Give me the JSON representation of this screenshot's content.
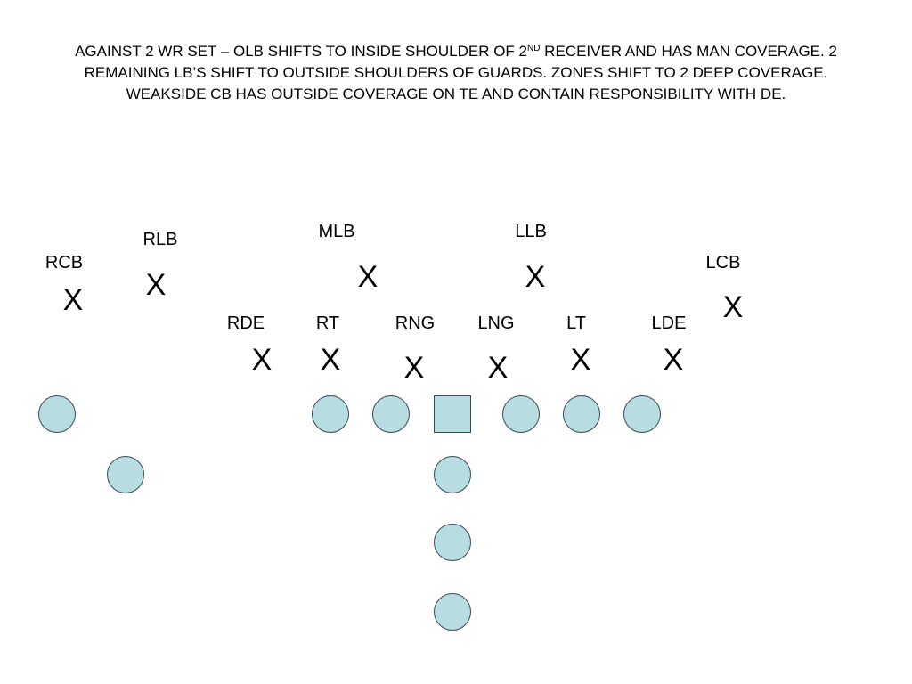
{
  "title": {
    "part1": "AGAINST 2 WR SET – OLB SHIFTS TO INSIDE SHOULDER OF 2",
    "sup": "ND",
    "part2": " RECEIVER AND HAS MAN COVERAGE. 2 REMAINING LB’S SHIFT TO OUTSIDE SHOULDERS OF GUARDS.  ZONES SHIFT TO 2 DEEP COVERAGE.  WEAKSIDE CB HAS OUTSIDE COVERAGE ON TE AND CONTAIN RESPONSIBILITY WITH DE."
  },
  "defense": [
    {
      "id": "rcb",
      "label": "RCB",
      "mark": "X"
    },
    {
      "id": "rlb",
      "label": "RLB",
      "mark": "X"
    },
    {
      "id": "mlb",
      "label": "MLB",
      "mark": "X"
    },
    {
      "id": "llb",
      "label": "LLB",
      "mark": "X"
    },
    {
      "id": "lcb",
      "label": "LCB",
      "mark": "X"
    },
    {
      "id": "rde",
      "label": "RDE",
      "mark": "X"
    },
    {
      "id": "rt",
      "label": "RT",
      "mark": "X"
    },
    {
      "id": "rng",
      "label": "RNG",
      "mark": "X"
    },
    {
      "id": "lng",
      "label": "LNG",
      "mark": "X"
    },
    {
      "id": "lt",
      "label": "LT",
      "mark": "X"
    },
    {
      "id": "lde",
      "label": "LDE",
      "mark": "X"
    }
  ],
  "offense": {
    "player_color": "#b7dde1",
    "outline_color": "#3a4a55",
    "center_shape": "square",
    "player_shape": "circle"
  }
}
